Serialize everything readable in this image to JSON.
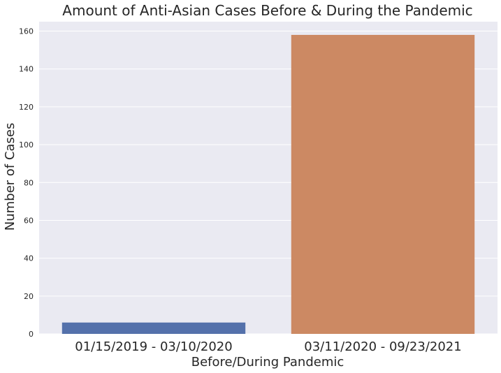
{
  "chart_data": {
    "type": "bar",
    "title": "Amount of Anti-Asian Cases Before & During the Pandemic",
    "xlabel": "Before/During Pandemic",
    "ylabel": "Number of Cases",
    "categories": [
      "01/15/2019 - 03/10/2020",
      "03/11/2020 - 09/23/2021"
    ],
    "values": [
      6,
      158
    ],
    "colors": [
      "#5471ab",
      "#cc8963"
    ],
    "ylim": [
      0,
      165
    ],
    "yticks": [
      0,
      20,
      40,
      60,
      80,
      100,
      120,
      140,
      160
    ],
    "grid": true,
    "legend": "none",
    "background": "#eaeaf2"
  }
}
